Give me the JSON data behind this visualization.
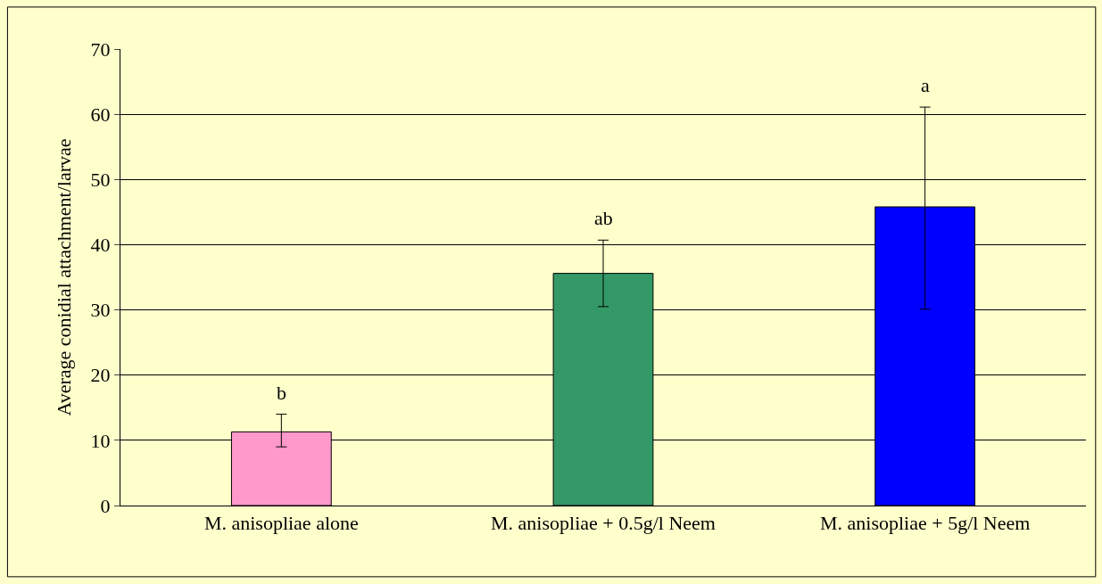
{
  "chart_data": {
    "type": "bar",
    "ylabel": "Average conidial attachment/larvae",
    "categories": [
      "M. anisopliae alone",
      "M. anisopliae + 0.5g/l Neem",
      "M. anisopliae + 5g/l Neem"
    ],
    "values": [
      11.3,
      35.6,
      45.8
    ],
    "colors": [
      "#ff99cc",
      "#339966",
      "#0000ff"
    ],
    "errors": [
      [
        9,
        14
      ],
      [
        30.5,
        40.7
      ],
      [
        30.1,
        61.1
      ]
    ],
    "ylim": [
      0,
      70
    ],
    "yticks": [
      0,
      10,
      20,
      30,
      40,
      50,
      60,
      70
    ],
    "grid": "y",
    "annotations": [
      "b",
      "ab",
      "a"
    ]
  }
}
